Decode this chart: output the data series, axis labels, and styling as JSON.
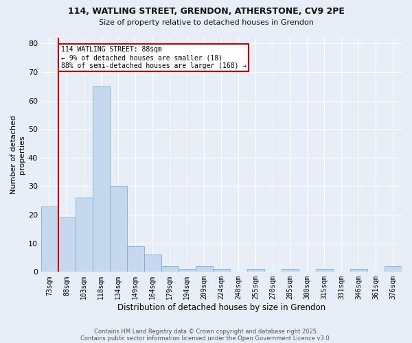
{
  "title1": "114, WATLING STREET, GRENDON, ATHERSTONE, CV9 2PE",
  "title2": "Size of property relative to detached houses in Grendon",
  "xlabel": "Distribution of detached houses by size in Grendon",
  "ylabel": "Number of detached\nproperties",
  "bar_color": "#c5d8ee",
  "bar_edge_color": "#7aafd4",
  "bg_color": "#e8eef8",
  "grid_color": "#ffffff",
  "categories": [
    "73sqm",
    "88sqm",
    "103sqm",
    "118sqm",
    "134sqm",
    "149sqm",
    "164sqm",
    "179sqm",
    "194sqm",
    "209sqm",
    "224sqm",
    "240sqm",
    "255sqm",
    "270sqm",
    "285sqm",
    "300sqm",
    "315sqm",
    "331sqm",
    "346sqm",
    "361sqm",
    "376sqm"
  ],
  "values": [
    23,
    19,
    26,
    65,
    30,
    9,
    6,
    2,
    1,
    2,
    1,
    0,
    1,
    0,
    1,
    0,
    1,
    0,
    1,
    0,
    2
  ],
  "property_line_x": 1,
  "annotation_line1": "114 WATLING STREET: 88sqm",
  "annotation_line2": "← 9% of detached houses are smaller (18)",
  "annotation_line3": "88% of semi-detached houses are larger (168) →",
  "annotation_box_color": "#ffffff",
  "annotation_box_edge": "#cc0000",
  "red_line_color": "#cc0000",
  "ylim": [
    0,
    82
  ],
  "yticks": [
    0,
    10,
    20,
    30,
    40,
    50,
    60,
    70,
    80
  ],
  "footer1": "Contains HM Land Registry data © Crown copyright and database right 2025.",
  "footer2": "Contains public sector information licensed under the Open Government Licence v3.0."
}
